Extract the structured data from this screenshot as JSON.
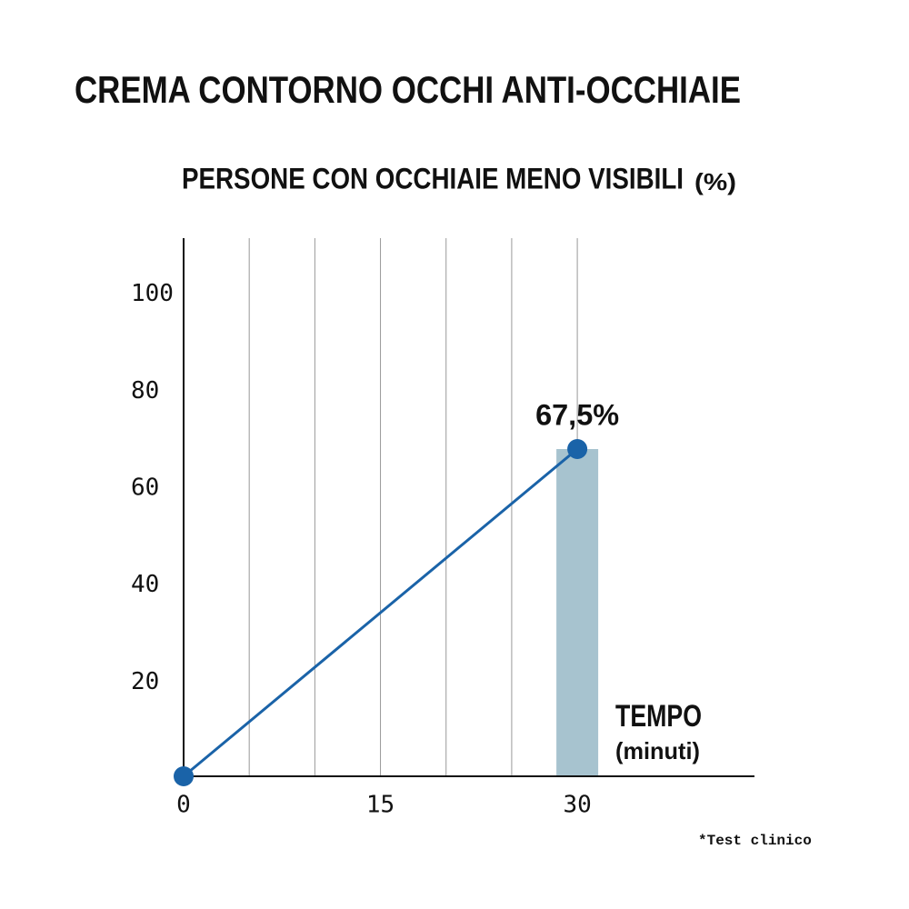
{
  "chart_data": {
    "type": "line",
    "title": "CREMA CONTORNO OCCHI ANTI-OCCHIAIE",
    "subtitle": "PERSONE CON OCCHIAIE MENO VISIBILI",
    "y_unit": "(%)",
    "x_label": "TEMPO",
    "x_unit": "(minuti)",
    "footnote": "*Test clinico",
    "x": [
      0,
      30
    ],
    "series": [
      {
        "type": "line",
        "color": "#1a63a8",
        "values": [
          0,
          67.5
        ],
        "value_labels": [
          null,
          "67,5%"
        ]
      },
      {
        "type": "bar",
        "color": "#a7c3cf",
        "values": [
          null,
          67.5
        ]
      }
    ],
    "xlim": [
      0,
      43.5
    ],
    "ylim": [
      0,
      111
    ],
    "xticks": [
      0,
      15,
      30
    ],
    "yticks": [
      20,
      40,
      60,
      80,
      100
    ],
    "x_grid": [
      5,
      10,
      15,
      20,
      25,
      30
    ]
  }
}
